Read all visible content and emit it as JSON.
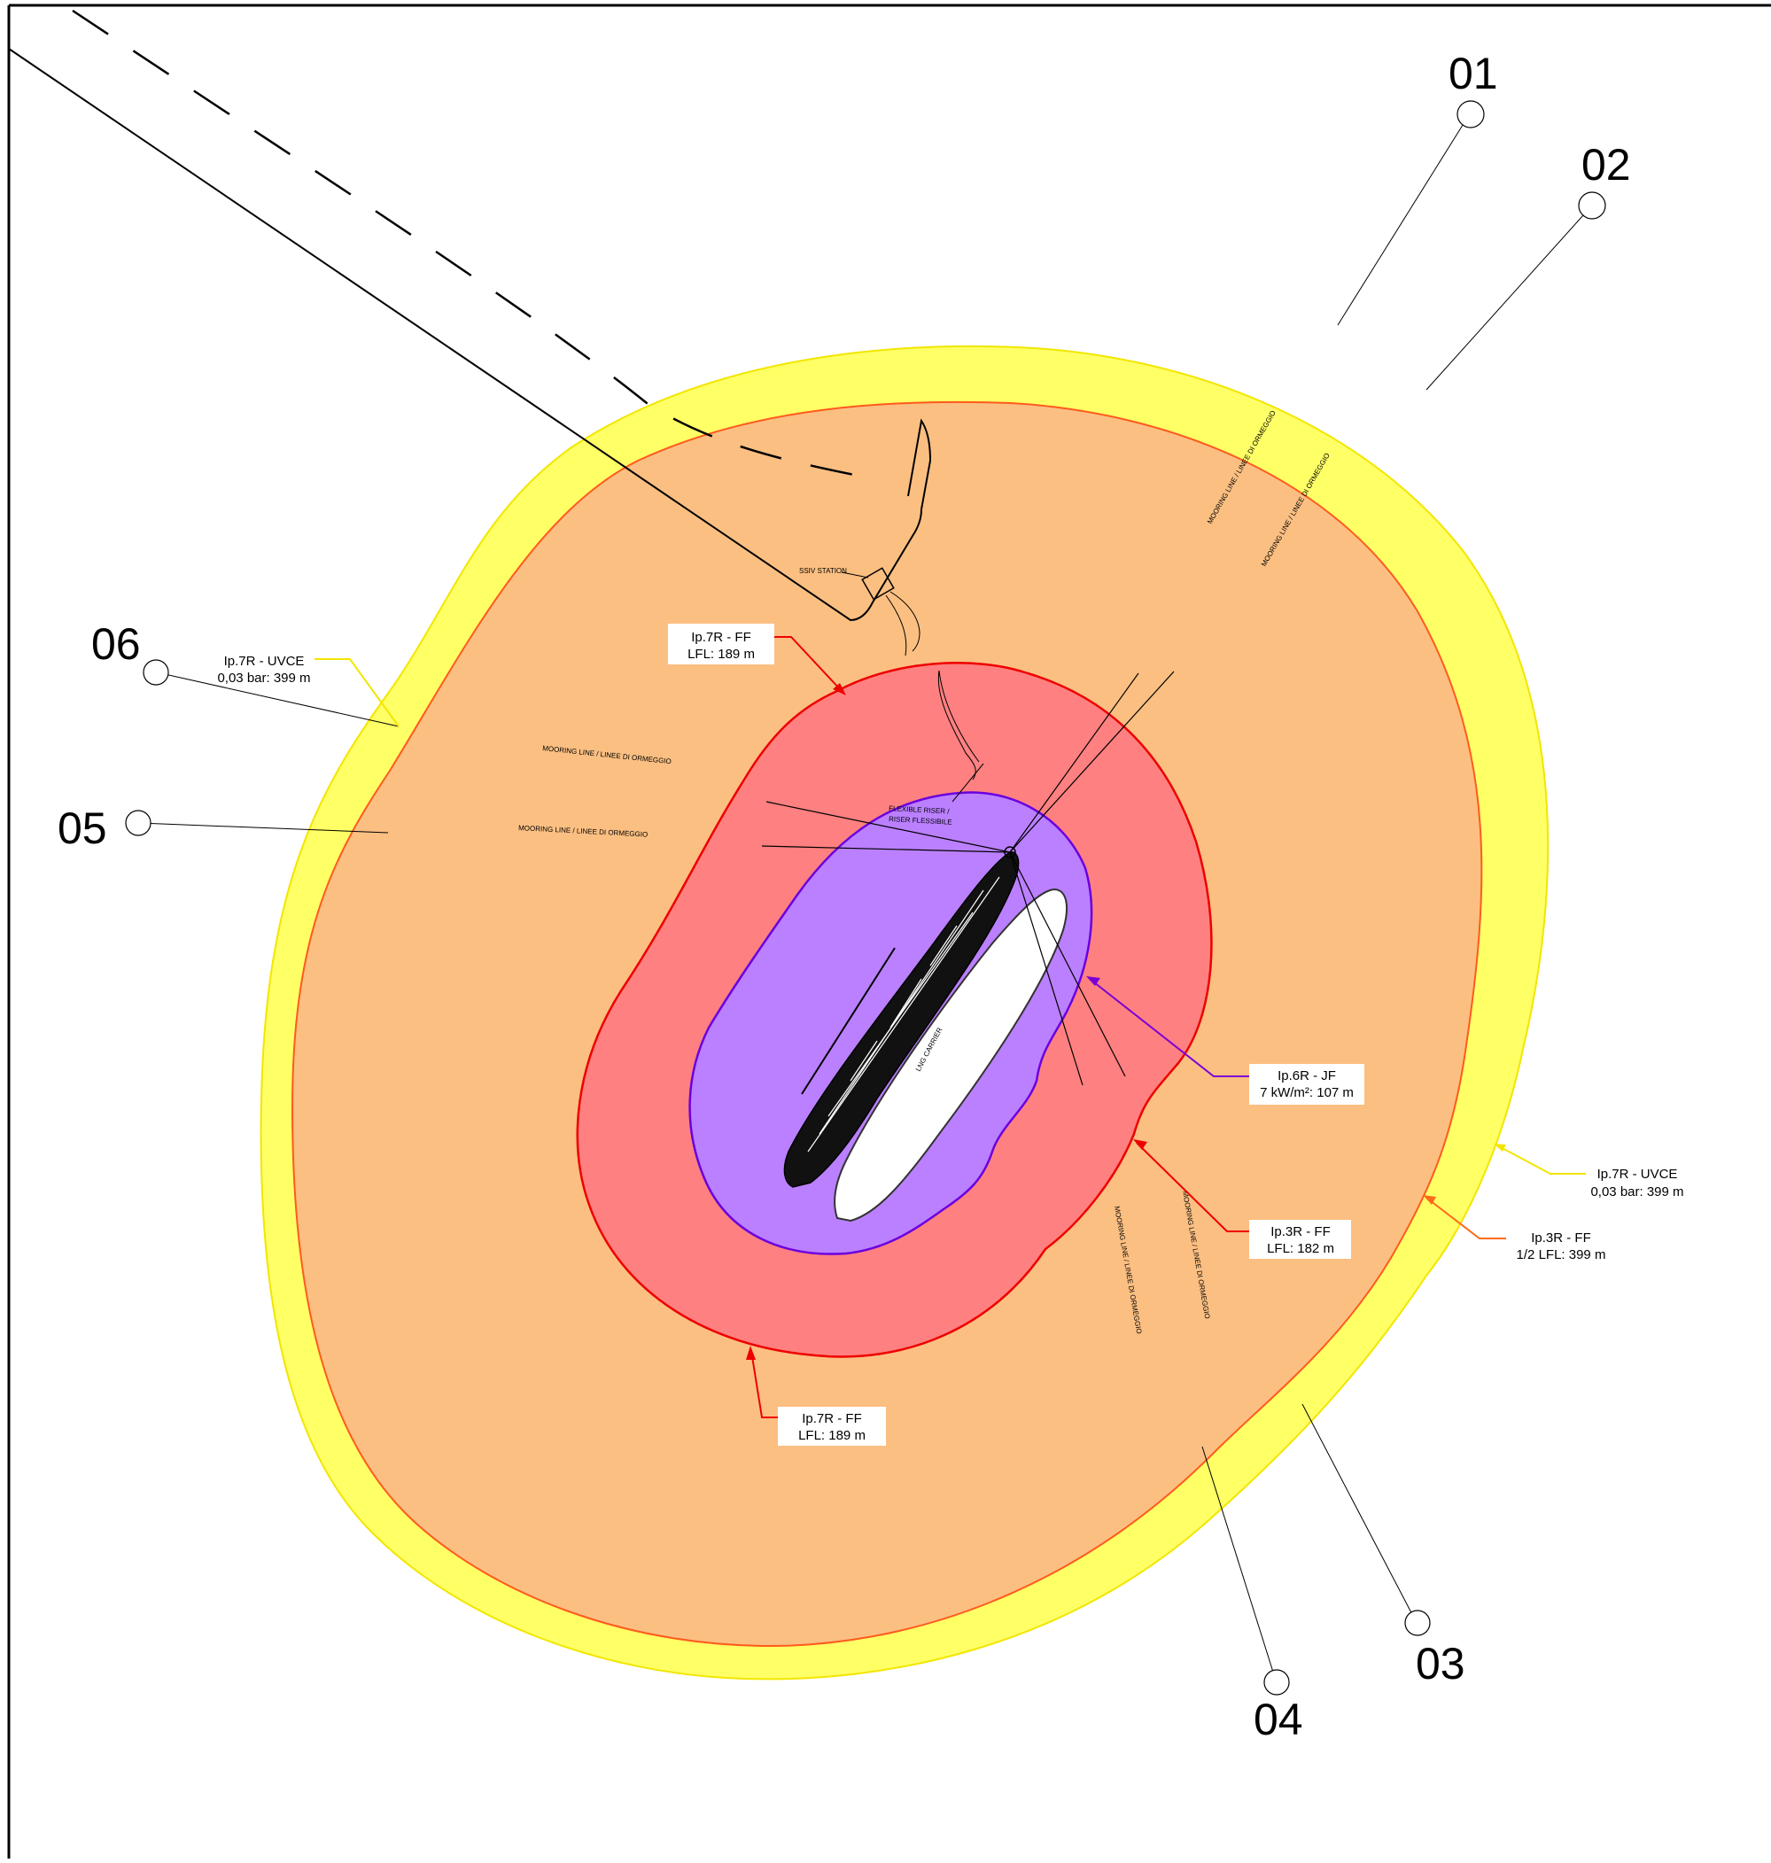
{
  "points": [
    {
      "id": "01",
      "label": "01"
    },
    {
      "id": "02",
      "label": "02"
    },
    {
      "id": "03",
      "label": "03"
    },
    {
      "id": "04",
      "label": "04"
    },
    {
      "id": "05",
      "label": "05"
    },
    {
      "id": "06",
      "label": "06"
    }
  ],
  "callouts": {
    "ip7r_ff_top": {
      "line1": "Ip.7R - FF",
      "line2": "LFL: 189 m"
    },
    "ip7r_uvce_left": {
      "line1": "Ip.7R - UVCE",
      "line2": "0,03 bar: 399 m"
    },
    "ip6r_jf": {
      "line1": "Ip.6R - JF",
      "line2": "7 kW/m²: 107 m"
    },
    "ip3r_ff_inner": {
      "line1": "Ip.3R - FF",
      "line2": "LFL: 182 m"
    },
    "ip7r_uvce_right": {
      "line1": "Ip.7R - UVCE",
      "line2": "0,03 bar: 399 m"
    },
    "ip3r_ff_outer": {
      "line1": "Ip.3R - FF",
      "line2": "1/2 LFL: 399 m"
    },
    "ip7r_ff_bottom": {
      "line1": "Ip.7R - FF",
      "line2": "LFL: 189 m"
    }
  },
  "annotations": {
    "ssiv_station": "SSIV STATION",
    "mooring_1": "MOORING LINE / LINEE DI ORMEGGIO",
    "mooring_2": "MOORING LINE / LINEE DI ORMEGGIO",
    "mooring_3": "MOORING LINE / LINEE DI ORMEGGIO",
    "mooring_4": "MOORING LINE / LINEE DI ORMEGGIO",
    "mooring_5": "MOORING LINE / LINEE DI ORMEGGIO",
    "mooring_6": "MOORING LINE / LINEE DI ORMEGGIO",
    "flexible_riser_1": "FLEXIBLE RISER /",
    "flexible_riser_2": "RISER FLESSIBILE",
    "lng_carrier": "LNG CARRIER"
  },
  "colors": {
    "uvce_zone": "#ffff66",
    "uvce_stroke": "#f2e600",
    "half_lfl_zone": "#fbbf82",
    "half_lfl_stroke": "#ff5a1e",
    "lfl_zone": "#ff8080",
    "lfl_stroke": "#ee0000",
    "jf_zone": "#bb80ff",
    "jf_stroke": "#6a00e0",
    "ip7r_ff_leader": "#ee0000",
    "ip7r_uvce_leader": "#f2e600",
    "ip6r_leader": "#7a00d6",
    "ip3r_ff_inner_leader": "#ee0000",
    "ip3r_ff_outer_leader": "#ff6a1a"
  }
}
